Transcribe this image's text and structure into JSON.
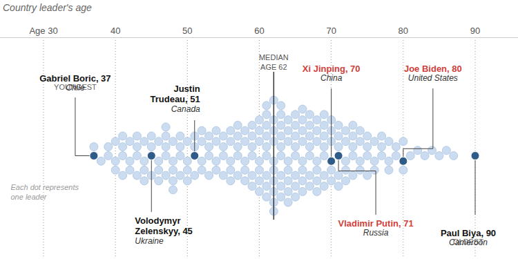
{
  "chart_data": {
    "type": "beeswarm",
    "title": "Country leader's age",
    "xlim": [
      24,
      96
    ],
    "xticks": [
      {
        "value": 30,
        "label": "Age 30"
      },
      40,
      50,
      60,
      70,
      80,
      90
    ],
    "grid": true,
    "color": "#cbdcf0",
    "values": [
      37,
      37,
      38,
      39,
      39,
      40,
      40,
      40,
      41,
      41,
      41,
      41,
      42,
      42,
      42,
      43,
      43,
      43,
      43,
      44,
      44,
      44,
      44,
      45,
      45,
      45,
      45,
      46,
      46,
      46,
      46,
      47,
      47,
      47,
      47,
      47,
      48,
      48,
      48,
      48,
      48,
      49,
      49,
      49,
      49,
      50,
      50,
      50,
      50,
      51,
      51,
      51,
      51,
      52,
      52,
      52,
      52,
      53,
      53,
      53,
      53,
      54,
      54,
      54,
      54,
      55,
      55,
      55,
      55,
      56,
      56,
      56,
      56,
      56,
      57,
      57,
      57,
      57,
      57,
      58,
      58,
      58,
      58,
      58,
      59,
      59,
      59,
      59,
      59,
      59,
      60,
      60,
      60,
      60,
      60,
      60,
      60,
      61,
      61,
      61,
      61,
      61,
      61,
      61,
      61,
      61,
      62,
      62,
      62,
      62,
      62,
      62,
      62,
      62,
      62,
      62,
      63,
      63,
      63,
      63,
      63,
      63,
      63,
      63,
      63,
      64,
      64,
      64,
      64,
      64,
      64,
      64,
      64,
      65,
      65,
      65,
      65,
      65,
      65,
      65,
      65,
      66,
      66,
      66,
      66,
      66,
      66,
      66,
      66,
      67,
      67,
      67,
      67,
      67,
      67,
      67,
      68,
      68,
      68,
      68,
      68,
      68,
      68,
      69,
      69,
      69,
      69,
      69,
      69,
      69,
      70,
      70,
      70,
      70,
      70,
      70,
      71,
      71,
      71,
      71,
      71,
      71,
      72,
      72,
      72,
      72,
      72,
      73,
      73,
      73,
      73,
      73,
      74,
      74,
      74,
      74,
      75,
      75,
      75,
      75,
      76,
      76,
      76,
      77,
      77,
      77,
      78,
      78,
      78,
      79,
      79,
      80,
      80,
      80,
      81,
      82,
      83,
      84,
      85,
      86,
      87,
      90
    ],
    "median": {
      "value": 62,
      "label": "MEDIAN\nAGE 62"
    },
    "note": "Each dot represents\none leader",
    "annotations": [
      {
        "tag": "YOUNGEST",
        "label": "Gabriel Boric, 37",
        "x": 37,
        "country": "Chile",
        "color": "#111111"
      },
      {
        "label": "Volodymyr\nZelenskyy, 45",
        "x": 45,
        "country": "Ukraine",
        "color": "#111111"
      },
      {
        "label": "Justin\nTrudeau, 51",
        "x": 51,
        "country": "Canada",
        "color": "#111111"
      },
      {
        "label": "Xi Jinping, 70",
        "x": 70,
        "country": "China",
        "color": "#d1403a"
      },
      {
        "label": "Vladimir Putin, 71",
        "x": 71,
        "country": "Russia",
        "color": "#d1403a"
      },
      {
        "label": "Joe Biden, 80",
        "x": 80,
        "country": "United States",
        "color": "#d1403a"
      },
      {
        "tag": "OLDEST",
        "label": "Paul Biya, 90",
        "x": 90,
        "country": "Cameroon",
        "color": "#111111"
      }
    ]
  }
}
